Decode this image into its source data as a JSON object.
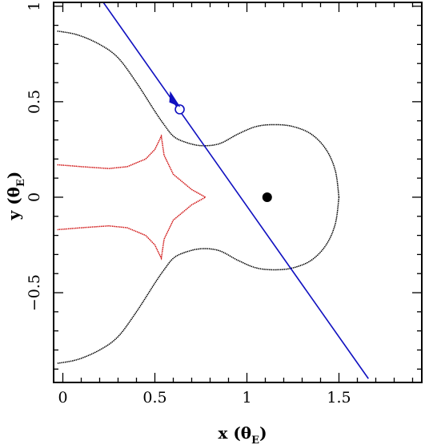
{
  "chart_data": {
    "type": "line",
    "title": "",
    "xlabel": {
      "text": "x (θ",
      "subscript": "E",
      "close": ")"
    },
    "ylabel": {
      "text": "y (θ",
      "subscript": "E",
      "close": ")"
    },
    "xlim": [
      -0.05,
      1.95
    ],
    "ylim": [
      -0.97,
      1.02
    ],
    "x_ticks": [
      {
        "value": 0,
        "label": "0"
      },
      {
        "value": 0.5,
        "label": "0.5"
      },
      {
        "value": 1,
        "label": "1"
      },
      {
        "value": 1.5,
        "label": "1.5"
      }
    ],
    "y_ticks": [
      {
        "value": -0.5,
        "label": "−0.5"
      },
      {
        "value": 0,
        "label": "0"
      },
      {
        "value": 0.5,
        "label": "0.5"
      },
      {
        "value": 1,
        "label": "1"
      }
    ],
    "colors": {
      "critical": "#000000",
      "caustic": "#d01010",
      "trajectory": "#1010c0"
    },
    "series": [
      {
        "kind": "critical-curve-upper",
        "color": "#000000",
        "points": [
          [
            -0.03,
            0.87
          ],
          [
            0.08,
            0.85
          ],
          [
            0.2,
            0.8
          ],
          [
            0.3,
            0.73
          ],
          [
            0.4,
            0.6
          ],
          [
            0.5,
            0.45
          ],
          [
            0.55,
            0.38
          ],
          [
            0.6,
            0.32
          ],
          [
            0.66,
            0.29
          ],
          [
            0.75,
            0.27
          ],
          [
            0.85,
            0.28
          ],
          [
            0.95,
            0.33
          ],
          [
            1.05,
            0.37
          ],
          [
            1.15,
            0.38
          ],
          [
            1.25,
            0.37
          ],
          [
            1.35,
            0.33
          ],
          [
            1.43,
            0.25
          ],
          [
            1.48,
            0.14
          ],
          [
            1.5,
            0.0
          ]
        ]
      },
      {
        "kind": "critical-curve-lower",
        "color": "#000000",
        "points": [
          [
            1.5,
            0.0
          ],
          [
            1.48,
            -0.14
          ],
          [
            1.43,
            -0.25
          ],
          [
            1.35,
            -0.33
          ],
          [
            1.25,
            -0.37
          ],
          [
            1.15,
            -0.38
          ],
          [
            1.05,
            -0.37
          ],
          [
            0.95,
            -0.33
          ],
          [
            0.85,
            -0.28
          ],
          [
            0.75,
            -0.27
          ],
          [
            0.66,
            -0.29
          ],
          [
            0.6,
            -0.32
          ],
          [
            0.55,
            -0.38
          ],
          [
            0.5,
            -0.45
          ],
          [
            0.4,
            -0.6
          ],
          [
            0.3,
            -0.73
          ],
          [
            0.2,
            -0.8
          ],
          [
            0.08,
            -0.85
          ],
          [
            -0.03,
            -0.87
          ]
        ]
      },
      {
        "kind": "caustic",
        "color": "#d01010",
        "points": [
          [
            -0.03,
            0.17
          ],
          [
            0.1,
            0.16
          ],
          [
            0.25,
            0.15
          ],
          [
            0.35,
            0.16
          ],
          [
            0.45,
            0.2
          ],
          [
            0.5,
            0.25
          ],
          [
            0.535,
            0.32
          ],
          [
            0.55,
            0.22
          ],
          [
            0.6,
            0.12
          ],
          [
            0.7,
            0.04
          ],
          [
            0.775,
            0.0
          ],
          [
            0.7,
            -0.04
          ],
          [
            0.6,
            -0.12
          ],
          [
            0.55,
            -0.22
          ],
          [
            0.535,
            -0.32
          ],
          [
            0.5,
            -0.25
          ],
          [
            0.45,
            -0.2
          ],
          [
            0.35,
            -0.16
          ],
          [
            0.25,
            -0.15
          ],
          [
            0.1,
            -0.16
          ],
          [
            -0.03,
            -0.17
          ]
        ]
      },
      {
        "kind": "source-trajectory",
        "color": "#1010c0",
        "points": [
          [
            0.22,
            1.02
          ],
          [
            1.66,
            -0.95
          ]
        ]
      }
    ],
    "markers": [
      {
        "kind": "lens-companion",
        "x": 1.11,
        "y": 0.0,
        "style": "filled-circle",
        "color": "#000000"
      },
      {
        "kind": "source-position",
        "x": 0.635,
        "y": 0.46,
        "style": "open-circle",
        "color": "#1010c0"
      },
      {
        "kind": "direction-arrow",
        "x": 0.6,
        "y": 0.505,
        "style": "arrowhead",
        "color": "#1010c0"
      }
    ],
    "grid": false,
    "legend": "none"
  }
}
